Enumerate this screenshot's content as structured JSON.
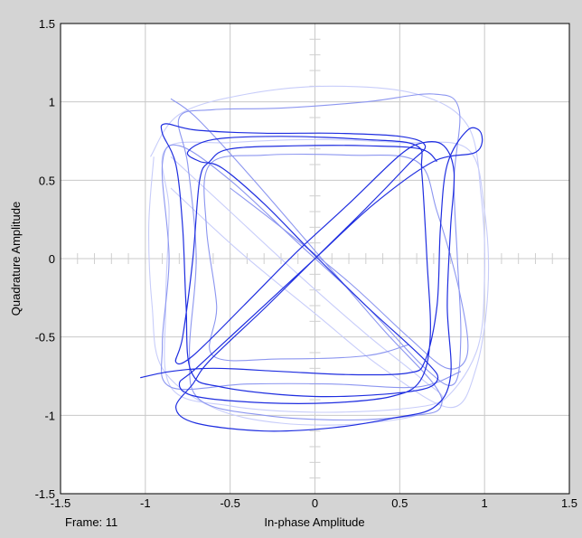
{
  "window": {
    "frame_label": "Frame: 11"
  },
  "chart_data": {
    "type": "line",
    "title": "",
    "xlabel": "In-phase Amplitude",
    "ylabel": "Quadrature Amplitude",
    "xlim": [
      -1.5,
      1.5
    ],
    "ylim": [
      -1.5,
      1.5
    ],
    "xticks": [
      "-1.5",
      "-1",
      "-0.5",
      "0",
      "0.5",
      "1",
      "1.5"
    ],
    "yticks": [
      "1.5",
      "1",
      "0.5",
      "0",
      "-0.5",
      "-1",
      "-1.5"
    ],
    "grid": true,
    "colors": {
      "current": "#1f2ee0",
      "history": "#8c96f0",
      "faded": "#c8cdfa",
      "grid": "#c8c8c8",
      "background": "#d4d4d4",
      "plot_bg": "#ffffff"
    },
    "series": [
      {
        "points": [
          [
            -1.03,
            -0.76
          ],
          [
            -0.85,
            -0.72
          ],
          [
            -0.6,
            -0.7
          ],
          [
            -0.2,
            -0.72
          ],
          [
            0.2,
            -0.74
          ],
          [
            0.55,
            -0.73
          ],
          [
            0.65,
            -0.65
          ],
          [
            0.72,
            -0.3
          ],
          [
            0.74,
            0.2
          ],
          [
            0.78,
            0.6
          ],
          [
            0.9,
            0.82
          ],
          [
            0.98,
            0.8
          ],
          [
            0.95,
            0.68
          ],
          [
            0.7,
            0.62
          ],
          [
            0.35,
            0.35
          ],
          [
            0,
            0
          ],
          [
            -0.35,
            -0.35
          ],
          [
            -0.7,
            -0.7
          ],
          [
            -0.8,
            -0.8
          ],
          [
            -0.7,
            -0.88
          ],
          [
            -0.3,
            -0.92
          ],
          [
            0.1,
            -0.92
          ],
          [
            0.45,
            -0.88
          ],
          [
            0.62,
            -0.78
          ],
          [
            0.68,
            -0.5
          ],
          [
            0.66,
            0
          ],
          [
            0.63,
            0.55
          ],
          [
            0.6,
            0.72
          ],
          [
            0.3,
            0.76
          ],
          [
            -0.2,
            0.78
          ],
          [
            -0.6,
            0.76
          ],
          [
            -0.75,
            0.68
          ],
          [
            -0.68,
            0.62
          ],
          [
            -0.55,
            0.58
          ],
          [
            -0.3,
            0.35
          ],
          [
            0,
            0.02
          ],
          [
            0.3,
            -0.3
          ],
          [
            0.65,
            -0.65
          ],
          [
            0.72,
            -0.78
          ],
          [
            0.55,
            -0.85
          ],
          [
            0,
            -0.88
          ],
          [
            -0.55,
            -0.82
          ],
          [
            -0.73,
            -0.72
          ],
          [
            -0.76,
            -0.3
          ],
          [
            -0.78,
            0.2
          ],
          [
            -0.82,
            0.6
          ],
          [
            -0.9,
            0.8
          ],
          [
            -0.88,
            0.86
          ],
          [
            -0.7,
            0.82
          ],
          [
            -0.3,
            0.8
          ],
          [
            0.1,
            0.8
          ],
          [
            0.5,
            0.78
          ],
          [
            0.65,
            0.72
          ],
          [
            0.55,
            0.6
          ],
          [
            0.3,
            0.32
          ],
          [
            0,
            0
          ],
          [
            -0.3,
            -0.32
          ],
          [
            -0.62,
            -0.65
          ],
          [
            -0.72,
            -0.8
          ],
          [
            -0.82,
            -0.95
          ],
          [
            -0.7,
            -1.05
          ],
          [
            -0.3,
            -1.1
          ],
          [
            0.1,
            -1.08
          ],
          [
            0.45,
            -1.02
          ],
          [
            0.7,
            -0.95
          ],
          [
            0.8,
            -0.75
          ],
          [
            0.78,
            -0.3
          ],
          [
            0.8,
            0.2
          ],
          [
            0.82,
            0.55
          ],
          [
            0.76,
            0.72
          ],
          [
            0.64,
            0.74
          ],
          [
            0.5,
            0.66
          ],
          [
            0.2,
            0.35
          ],
          [
            -0.1,
            0.05
          ],
          [
            -0.42,
            -0.3
          ],
          [
            -0.72,
            -0.62
          ],
          [
            -0.82,
            -0.66
          ],
          [
            -0.78,
            -0.5
          ],
          [
            -0.72,
            0
          ],
          [
            -0.68,
            0.5
          ],
          [
            -0.62,
            0.62
          ],
          [
            -0.5,
            0.7
          ],
          [
            -0.1,
            0.72
          ],
          [
            0.3,
            0.72
          ],
          [
            0.62,
            0.7
          ],
          [
            0.72,
            0.62
          ]
        ],
        "style": "current"
      },
      {
        "points": [
          [
            -0.85,
            1.02
          ],
          [
            -0.7,
            0.9
          ],
          [
            -0.4,
            0.55
          ],
          [
            0,
            0.05
          ],
          [
            0.4,
            -0.45
          ],
          [
            0.7,
            -0.8
          ],
          [
            0.74,
            -0.95
          ],
          [
            0.6,
            -1.0
          ],
          [
            0.2,
            -1.03
          ],
          [
            -0.3,
            -1.0
          ],
          [
            -0.68,
            -0.9
          ],
          [
            -0.74,
            -0.6
          ],
          [
            -0.7,
            0
          ],
          [
            -0.75,
            0.6
          ],
          [
            -0.8,
            0.9
          ],
          [
            -0.6,
            0.95
          ],
          [
            -0.2,
            0.96
          ],
          [
            0.3,
            1.0
          ],
          [
            0.7,
            1.05
          ],
          [
            0.85,
            0.95
          ],
          [
            0.82,
            0.5
          ],
          [
            0.84,
            0
          ],
          [
            0.86,
            -0.5
          ],
          [
            0.82,
            -0.8
          ],
          [
            0.65,
            -0.7
          ],
          [
            0.3,
            -0.3
          ],
          [
            -0.1,
            0.1
          ],
          [
            -0.5,
            0.5
          ],
          [
            -0.8,
            0.72
          ],
          [
            -0.9,
            0.6
          ],
          [
            -0.86,
            0
          ],
          [
            -0.9,
            -0.55
          ],
          [
            -0.85,
            -0.82
          ],
          [
            -0.4,
            -0.8
          ],
          [
            0.1,
            -0.8
          ],
          [
            0.6,
            -0.82
          ],
          [
            0.86,
            -0.72
          ]
        ],
        "style": "history"
      },
      {
        "points": [
          [
            -0.95,
            0.65
          ],
          [
            -0.98,
            0.2
          ],
          [
            -0.96,
            -0.3
          ],
          [
            -0.9,
            -0.7
          ],
          [
            -0.6,
            -0.95
          ],
          [
            -0.2,
            -1.05
          ],
          [
            0.3,
            -1.05
          ],
          [
            0.7,
            -0.95
          ],
          [
            0.95,
            -0.6
          ],
          [
            1.0,
            -0.1
          ],
          [
            0.98,
            0.4
          ],
          [
            0.9,
            0.85
          ],
          [
            0.6,
            1.05
          ],
          [
            0.1,
            1.1
          ],
          [
            -0.4,
            1.05
          ],
          [
            -0.8,
            0.92
          ],
          [
            -0.97,
            0.65
          ]
        ],
        "style": "faded"
      },
      {
        "points": [
          [
            -0.5,
            0.45
          ],
          [
            -0.2,
            0.2
          ],
          [
            0.2,
            -0.15
          ],
          [
            0.55,
            -0.5
          ],
          [
            0.78,
            -0.7
          ],
          [
            0.9,
            -0.6
          ],
          [
            0.85,
            -0.2
          ],
          [
            0.72,
            0.3
          ],
          [
            0.6,
            0.62
          ],
          [
            0.2,
            0.66
          ],
          [
            -0.3,
            0.66
          ],
          [
            -0.62,
            0.6
          ],
          [
            -0.64,
            0.2
          ],
          [
            -0.58,
            -0.3
          ],
          [
            -0.6,
            -0.62
          ],
          [
            -0.2,
            -0.64
          ],
          [
            0.3,
            -0.62
          ],
          [
            0.55,
            -0.55
          ]
        ],
        "style": "history"
      },
      {
        "points": [
          [
            -0.85,
            0.65
          ],
          [
            -0.5,
            0.3
          ],
          [
            -0.1,
            -0.1
          ],
          [
            0.3,
            -0.48
          ],
          [
            0.62,
            -0.76
          ],
          [
            0.75,
            -0.9
          ],
          [
            0.5,
            -0.96
          ],
          [
            0,
            -0.98
          ],
          [
            -0.5,
            -0.94
          ],
          [
            -0.85,
            -0.82
          ],
          [
            -0.88,
            -0.3
          ],
          [
            -0.86,
            0.3
          ],
          [
            -0.88,
            0.7
          ],
          [
            -0.5,
            0.74
          ],
          [
            0,
            0.76
          ],
          [
            0.5,
            0.74
          ],
          [
            0.9,
            0.7
          ],
          [
            1.0,
            0.3
          ],
          [
            1.02,
            -0.2
          ],
          [
            0.95,
            -0.7
          ],
          [
            0.8,
            -0.95
          ],
          [
            0.4,
            -0.7
          ],
          [
            0,
            -0.35
          ],
          [
            -0.45,
            0.05
          ],
          [
            -0.85,
            0.45
          ]
        ],
        "style": "faded"
      }
    ]
  }
}
